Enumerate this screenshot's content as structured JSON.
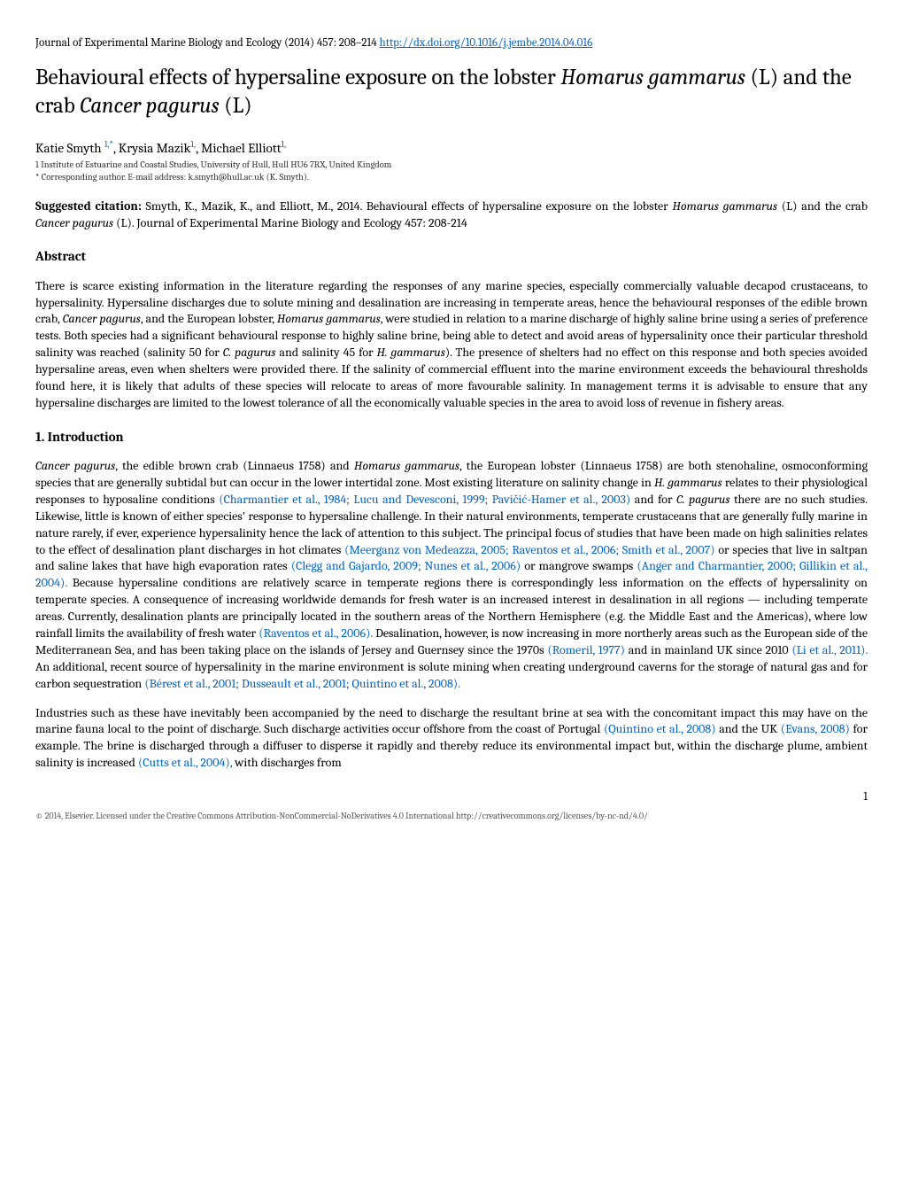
{
  "journal": {
    "citation": "Journal of Experimental Marine Biology and Ecology (2014)  457: 208–214 ",
    "doi_url": "http://dx.doi.org/10.1016/j.jembe.2014.04.016"
  },
  "title": {
    "pre1": "Behavioural effects of hypersaline exposure on the lobster ",
    "sp1": "Homarus gammarus",
    "mid": " (L) and the crab ",
    "sp2": "Cancer pagurus",
    "post": " (L)"
  },
  "authors": {
    "a1": "Katie Smyth ",
    "a1_sup": "1,*",
    "a2": ",  Krysia Mazik",
    "a2_sup": "1,",
    "a3": ",  Michael Elliott",
    "a3_sup": "1,"
  },
  "affiliation": "1 Institute of Estuarine and Coastal Studies, University of Hull, Hull HU6 7RX, United Kingdom",
  "corresponding": "* Corresponding author.  E-mail address: k.smyth@hull.ac.uk (K. Smyth).",
  "citation_block": {
    "label": "Suggested citation:",
    "pre": "  Smyth, K., Mazik, K., and Elliott, M., 2014. Behavioural effects of hypersaline exposure on the lobster ",
    "sp1": "Homarus gammarus",
    "mid1": " (L) and the crab ",
    "sp2": "Cancer pagurus",
    "post": " (L). Journal of Experimental Marine Biology and Ecology 457: 208-214"
  },
  "sections": {
    "abstract_heading": "Abstract",
    "intro_heading": "1.   Introduction"
  },
  "abstract": {
    "p1a": "There is scarce existing information in the literature regarding the responses of any marine species, especially commercially valuable decapod crustaceans, to hypersalinity. Hypersaline discharges due to solute mining and desalination are increasing in temperate areas, hence the behavioural responses of the edible brown crab, ",
    "sp1": "Cancer pagurus",
    "p1b": ", and the European lobster, ",
    "sp2": "Homarus gammarus",
    "p1c": ", were studied in relation to a marine discharge of highly saline brine using a series of preference tests. Both species had a significant behavioural response to highly saline brine, being able to detect and avoid areas of hypersalinity once their particular threshold salinity was reached (salinity 50 for ",
    "sp3": "C. pagurus",
    "p1d": " and salinity 45 for ",
    "sp4": "H. gammarus",
    "p1e": "). The presence of shelters had no effect on this response and both species avoided hypersaline areas, even when shelters were provided there. If the salinity of commercial effluent into the marine environment exceeds the behavioural thresholds found here, it is likely that adults of these species will relocate to areas of more favourable salinity. In management terms it is advisable to ensure that any hypersaline discharges are limited to the lowest tolerance of all the economically valuable species in the area to avoid loss of revenue in fishery areas."
  },
  "intro": {
    "p1a": "Cancer pagurus",
    "p1b": ", the edible brown crab (Linnaeus 1758) and ",
    "p1c": "Homarus gammarus",
    "p1d": ", the European lobster (Linnaeus 1758) are both stenohaline, osmoconforming species that are generally subtidal but can occur in the lower intertidal zone. Most existing literature on salinity change in ",
    "p1e": "H. gammarus",
    "p1f": " relates to their physiological responses to hyposaline conditions ",
    "c1": "(Charmantier et al., 1984; Lucu and Devesconi, 1999; Pavičić-Hamer et al., 2003)",
    "p1g": " and for ",
    "p1h": "C. pagurus",
    "p1i": " there are no such studies. Likewise, little is known of either species' response to hypersaline challenge. In their natural environments, temperate crustaceans that are generally fully marine in nature rarely, if ever, experience hypersalinity hence the lack of attention to this subject. The principal focus of studies that have been made on high salinities relates to the effect of desalination plant discharges in hot climates ",
    "c2": "(Meerganz von Medeazza, 2005; Raventos et al., 2006; Smith et al., 2007)",
    "p1j": " or species that live in saltpan and saline lakes that have high evaporation rates ",
    "c3": "(Clegg and Gajardo, 2009; Nunes et al., 2006)",
    "p1k": " or mangrove swamps ",
    "c4": "(Anger and Charmantier, 2000; Gillikin et al., 2004).",
    "p1l": " Because hypersaline conditions are relatively scarce in temperate regions there is correspondingly less information on the effects of hypersalinity on temperate species. A consequence of increasing worldwide demands for fresh water is an increased interest in desalination in all regions — including temperate areas. Currently, desalination plants are principally located in the southern areas of the Northern Hemisphere (e.g. the Middle East and the Americas), where low rainfall limits the availability of fresh water ",
    "c5": "(Raventos et al., 2006).",
    "p1m": " Desalination, however, is now increasing in more northerly areas such as the European side of the Mediterranean Sea, and has been taking place on the islands of Jersey and Guernsey since the 1970s ",
    "c6": "(Romeril, 1977)",
    "p1n": " and in mainland UK since 2010 ",
    "c7": "(Li et al., 2011).",
    "p1o": " An additional, recent source of hypersalinity in the marine environment is solute mining when creating underground caverns for the storage of natural gas and for carbon sequestration ",
    "c8": "(Bérest et al., 2001; Dusseault et al., 2001; Quintino et al., 2008).",
    "p2a": "Industries such as these have inevitably been accompanied by the need to discharge the resultant brine at sea with the concomitant impact this may have on the marine fauna local to the point of discharge. Such discharge activities occur offshore from the coast of Portugal ",
    "c9": "(Quintino et al., 2008)",
    "p2b": " and the UK ",
    "c10": "(Evans, 2008)",
    "p2c": " for example. The brine is discharged through a diffuser to disperse it rapidly and thereby reduce its environmental impact but, within the discharge plume, ambient salinity is increased ",
    "c11": "(Cutts et al., 2004),",
    "p2d": " with discharges from"
  },
  "page_number": "1",
  "footer": "© 2014, Elsevier. Licensed under the Creative Commons Attribution-NonCommercial-NoDerivatives 4.0 International http://creativecommons.org/licenses/by-nc-nd/4.0/"
}
